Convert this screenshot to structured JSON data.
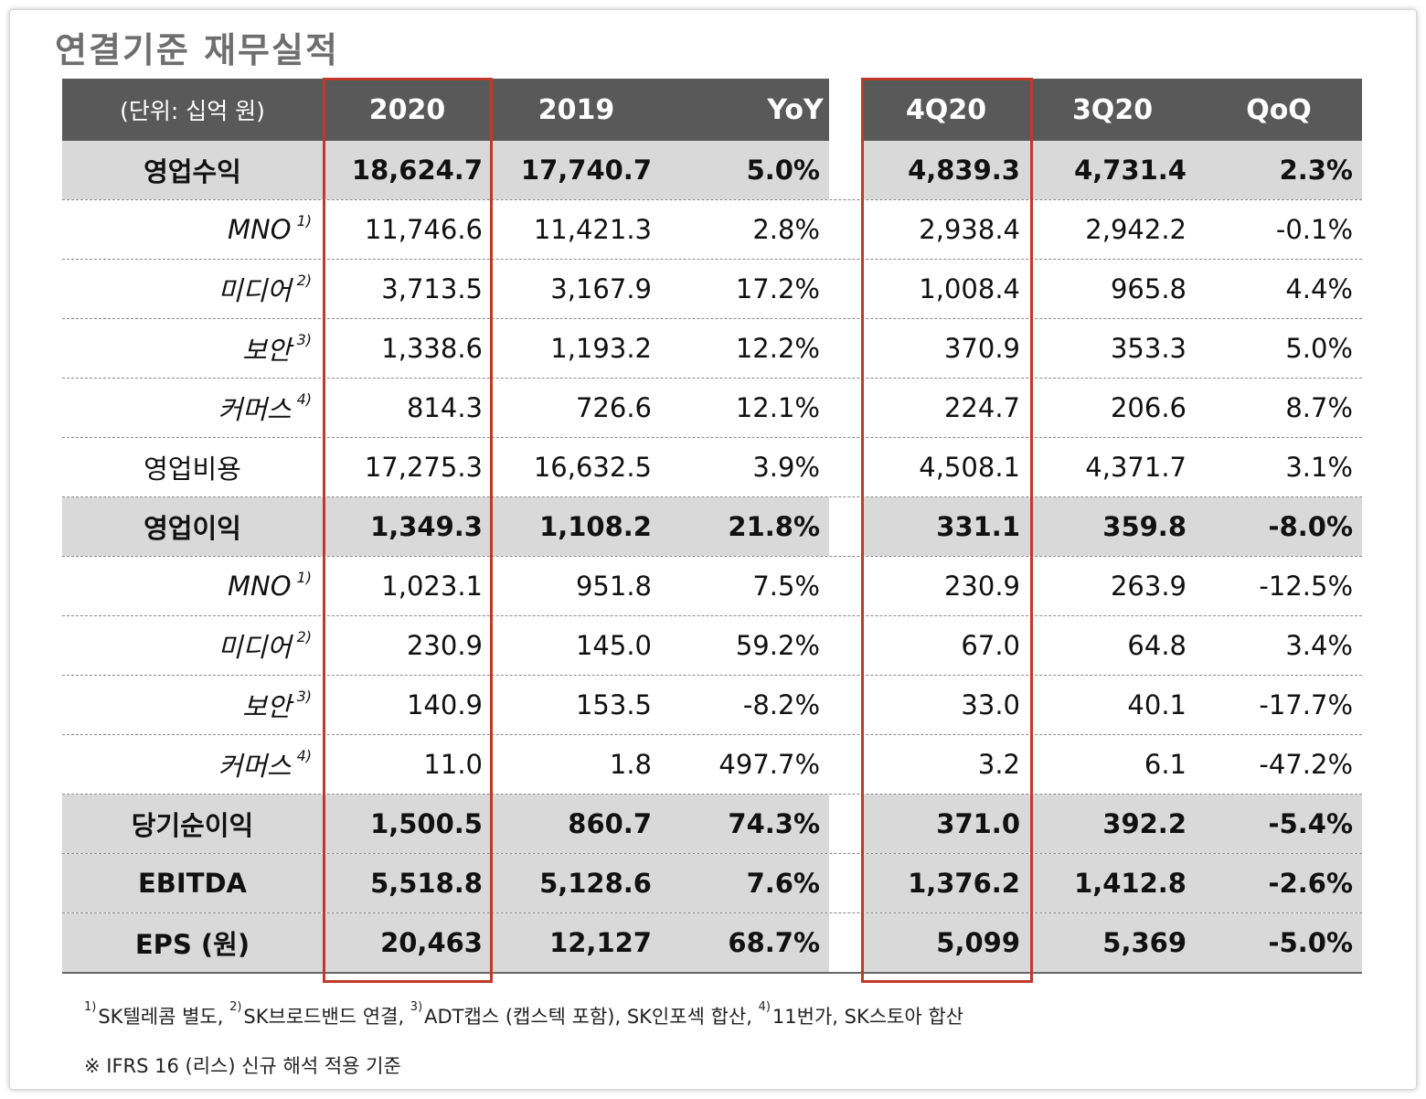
{
  "title": "연결기준 재무실적",
  "header": {
    "unit": "(단위: 십억 원)",
    "cols": [
      "2020",
      "2019",
      "YoY",
      "4Q20",
      "3Q20",
      "QoQ"
    ]
  },
  "rows": [
    {
      "label": "영업수익",
      "note": "",
      "bold": true,
      "values": [
        "18,624.7",
        "17,740.7",
        "5.0%",
        "4,839.3",
        "4,731.4",
        "2.3%"
      ]
    },
    {
      "label": "MNO",
      "note": "1)",
      "sub": true,
      "values": [
        "11,746.6",
        "11,421.3",
        "2.8%",
        "2,938.4",
        "2,942.2",
        "-0.1%"
      ]
    },
    {
      "label": "미디어",
      "note": "2)",
      "sub": true,
      "values": [
        "3,713.5",
        "3,167.9",
        "17.2%",
        "1,008.4",
        "965.8",
        "4.4%"
      ]
    },
    {
      "label": "보안",
      "note": "3)",
      "sub": true,
      "values": [
        "1,338.6",
        "1,193.2",
        "12.2%",
        "370.9",
        "353.3",
        "5.0%"
      ]
    },
    {
      "label": "커머스",
      "note": "4)",
      "sub": true,
      "values": [
        "814.3",
        "726.6",
        "12.1%",
        "224.7",
        "206.6",
        "8.7%"
      ]
    },
    {
      "label": "영업비용",
      "note": "",
      "values": [
        "17,275.3",
        "16,632.5",
        "3.9%",
        "4,508.1",
        "4,371.7",
        "3.1%"
      ]
    },
    {
      "label": "영업이익",
      "note": "",
      "bold": true,
      "values": [
        "1,349.3",
        "1,108.2",
        "21.8%",
        "331.1",
        "359.8",
        "-8.0%"
      ]
    },
    {
      "label": "MNO",
      "note": "1)",
      "sub": true,
      "values": [
        "1,023.1",
        "951.8",
        "7.5%",
        "230.9",
        "263.9",
        "-12.5%"
      ]
    },
    {
      "label": "미디어",
      "note": "2)",
      "sub": true,
      "values": [
        "230.9",
        "145.0",
        "59.2%",
        "67.0",
        "64.8",
        "3.4%"
      ]
    },
    {
      "label": "보안",
      "note": "3)",
      "sub": true,
      "values": [
        "140.9",
        "153.5",
        "-8.2%",
        "33.0",
        "40.1",
        "-17.7%"
      ]
    },
    {
      "label": "커머스",
      "note": "4)",
      "sub": true,
      "values": [
        "11.0",
        "1.8",
        "497.7%",
        "3.2",
        "6.1",
        "-47.2%"
      ]
    },
    {
      "label": "당기순이익",
      "note": "",
      "bold": true,
      "values": [
        "1,500.5",
        "860.7",
        "74.3%",
        "371.0",
        "392.2",
        "-5.4%"
      ]
    },
    {
      "label": "EBITDA",
      "note": "",
      "bold": true,
      "values": [
        "5,518.8",
        "5,128.6",
        "7.6%",
        "1,376.2",
        "1,412.8",
        "-2.6%"
      ]
    },
    {
      "label": "EPS (원)",
      "note": "",
      "bold": true,
      "values": [
        "20,463",
        "12,127",
        "68.7%",
        "5,099",
        "5,369",
        "-5.0%"
      ]
    }
  ],
  "footnotes": {
    "line1": [
      {
        "mark": "1)",
        "text": "SK텔레콤 별도, "
      },
      {
        "mark": "2)",
        "text": "SK브로드밴드 연결, "
      },
      {
        "mark": "3)",
        "text": "ADT캡스 (캡스텍 포함), SK인포섹 합산, "
      },
      {
        "mark": "4)",
        "text": "11번가, SK스토아 합산"
      }
    ],
    "line2": "※ IFRS 16 (리스) 신규 해석 적용 기준"
  },
  "colors": {
    "header_bg": "#595959",
    "shade": "#d9d9d9",
    "highlight": "#c0392b"
  }
}
